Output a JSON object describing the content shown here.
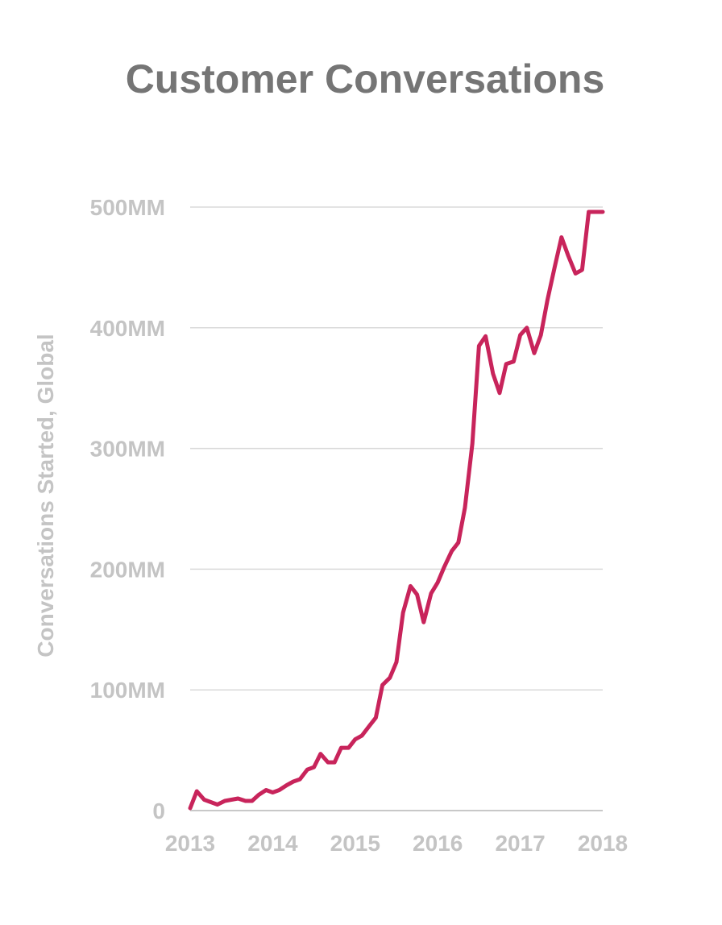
{
  "chart_data": {
    "type": "line",
    "title": "Customer Conversations",
    "xlabel": "",
    "ylabel": "Conversations Started, Global",
    "x_ticks": [
      "2013",
      "2014",
      "2015",
      "2016",
      "2017",
      "2018"
    ],
    "y_ticks": [
      "0",
      "100MM",
      "200MM",
      "300MM",
      "400MM",
      "500MM"
    ],
    "y_tick_values": [
      0,
      100,
      200,
      300,
      400,
      500
    ],
    "xlim": [
      2013,
      2018
    ],
    "ylim": [
      0,
      500
    ],
    "grid": true,
    "colors": {
      "line": "#C8245B",
      "title": "#757575",
      "axis_text": "#C4C4C4",
      "grid": "#DADADA"
    },
    "series": [
      {
        "x": [
          2013.0,
          2013.08,
          2013.17,
          2013.25,
          2013.33,
          2013.42,
          2013.5,
          2013.58,
          2013.67,
          2013.75,
          2013.83,
          2013.92,
          2014.0,
          2014.08,
          2014.17,
          2014.25,
          2014.33,
          2014.42,
          2014.5,
          2014.58,
          2014.67,
          2014.75,
          2014.83,
          2014.92,
          2015.0,
          2015.08,
          2015.17,
          2015.25,
          2015.33,
          2015.42,
          2015.5,
          2015.58,
          2015.67,
          2015.75,
          2015.83,
          2015.92,
          2016.0,
          2016.08,
          2016.17,
          2016.25,
          2016.33,
          2016.42,
          2016.5,
          2016.58,
          2016.67,
          2016.75,
          2016.83,
          2016.92,
          2017.0,
          2017.08,
          2017.17,
          2017.25,
          2017.33,
          2017.42,
          2017.5,
          2017.58,
          2017.67,
          2017.75,
          2017.83,
          2017.92,
          2018.0
        ],
        "y": [
          2,
          16,
          9,
          7,
          5,
          8,
          9,
          10,
          8,
          8,
          13,
          17,
          15,
          17,
          21,
          24,
          26,
          34,
          36,
          47,
          40,
          40,
          52,
          52,
          59,
          62,
          70,
          77,
          104,
          110,
          123,
          164,
          186,
          179,
          156,
          180,
          189,
          202,
          215,
          222,
          251,
          304,
          385,
          393,
          362,
          346,
          370,
          372,
          394,
          400,
          379,
          394,
          423,
          451,
          475,
          460,
          445,
          448,
          496,
          496,
          496
        ]
      }
    ]
  }
}
